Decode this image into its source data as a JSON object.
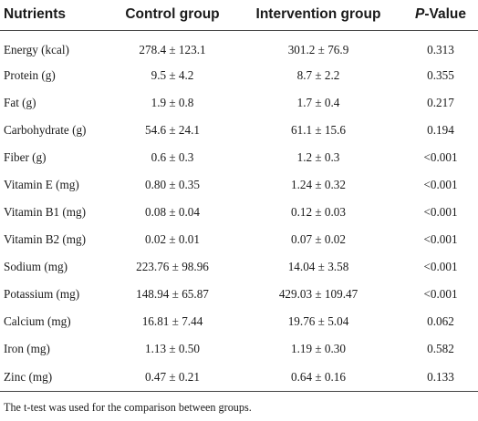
{
  "table": {
    "headers": {
      "nutrients": "Nutrients",
      "control": "Control group",
      "intervention": "Intervention group",
      "p_prefix": "P",
      "p_suffix": "-Value"
    },
    "rows": [
      {
        "name": "Energy (kcal)",
        "control": "278.4 ± 123.1",
        "intervention": "301.2 ± 76.9",
        "p": "0.313"
      },
      {
        "name": "Protein (g)",
        "control": "9.5 ± 4.2",
        "intervention": "8.7 ± 2.2",
        "p": "0.355"
      },
      {
        "name": "Fat (g)",
        "control": "1.9 ± 0.8",
        "intervention": "1.7 ± 0.4",
        "p": "0.217"
      },
      {
        "name": "Carbohydrate (g)",
        "control": "54.6 ± 24.1",
        "intervention": "61.1 ± 15.6",
        "p": "0.194"
      },
      {
        "name": "Fiber (g)",
        "control": "0.6 ± 0.3",
        "intervention": "1.2 ± 0.3",
        "p": "<0.001"
      },
      {
        "name": "Vitamin E (mg)",
        "control": "0.80 ± 0.35",
        "intervention": "1.24 ± 0.32",
        "p": "<0.001"
      },
      {
        "name": "Vitamin B1 (mg)",
        "control": "0.08 ± 0.04",
        "intervention": "0.12 ± 0.03",
        "p": "<0.001"
      },
      {
        "name": "Vitamin B2 (mg)",
        "control": "0.02 ± 0.01",
        "intervention": "0.07 ± 0.02",
        "p": "<0.001"
      },
      {
        "name": "Sodium (mg)",
        "control": "223.76 ± 98.96",
        "intervention": "14.04 ± 3.58",
        "p": "<0.001"
      },
      {
        "name": "Potassium (mg)",
        "control": "148.94 ± 65.87",
        "intervention": "429.03 ± 109.47",
        "p": "<0.001"
      },
      {
        "name": "Calcium (mg)",
        "control": "16.81 ± 7.44",
        "intervention": "19.76 ± 5.04",
        "p": "0.062"
      },
      {
        "name": "Iron (mg)",
        "control": "1.13 ± 0.50",
        "intervention": "1.19 ± 0.30",
        "p": "0.582"
      },
      {
        "name": "Zinc (mg)",
        "control": "0.47 ± 0.21",
        "intervention": "0.64 ± 0.16",
        "p": "0.133"
      }
    ]
  },
  "footnote": "The t-test was used for the comparison between groups."
}
